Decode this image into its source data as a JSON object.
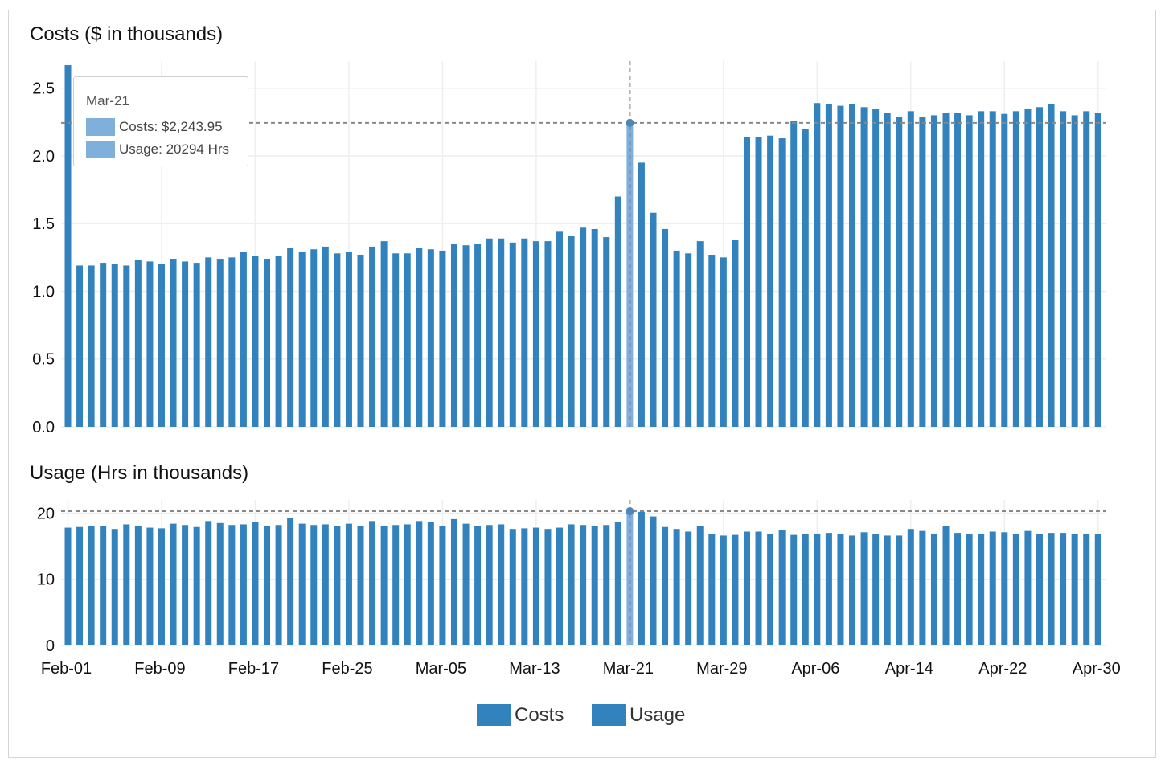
{
  "colors": {
    "bar": "#3182bd",
    "highlight": "#7fb0dc",
    "grid": "#eeeeee",
    "crosshair": "#888888"
  },
  "tooltip": {
    "date": "Mar-21",
    "costs_label": "Costs: $2,243.95",
    "usage_label": "Usage: 20294 Hrs"
  },
  "legend": [
    "Costs",
    "Usage"
  ],
  "chart_data": [
    {
      "type": "bar",
      "title": "Costs ($ in thousands)",
      "series_name": "Costs",
      "ylim": [
        0,
        2.7
      ],
      "yticks": [
        "0.0",
        "0.5",
        "1.0",
        "1.5",
        "2.0",
        "2.5"
      ],
      "ytick_values": [
        0,
        0.5,
        1.0,
        1.5,
        2.0,
        2.5
      ],
      "grid": true,
      "highlight_index": 48,
      "highlight_value": 2.24395,
      "x_ticks": [
        "Feb-01",
        "Feb-09",
        "Feb-17",
        "Feb-25",
        "Mar-05",
        "Mar-13",
        "Mar-21",
        "Mar-29",
        "Apr-06",
        "Apr-14",
        "Apr-22",
        "Apr-30"
      ],
      "x_tick_indices": [
        0,
        8,
        16,
        24,
        32,
        40,
        48,
        56,
        64,
        72,
        80,
        88
      ],
      "values": [
        2.67,
        1.19,
        1.19,
        1.21,
        1.2,
        1.19,
        1.23,
        1.22,
        1.2,
        1.24,
        1.22,
        1.21,
        1.25,
        1.24,
        1.25,
        1.29,
        1.26,
        1.24,
        1.26,
        1.32,
        1.29,
        1.31,
        1.33,
        1.28,
        1.29,
        1.27,
        1.33,
        1.37,
        1.28,
        1.28,
        1.32,
        1.31,
        1.3,
        1.35,
        1.34,
        1.35,
        1.39,
        1.39,
        1.36,
        1.39,
        1.37,
        1.37,
        1.44,
        1.41,
        1.47,
        1.46,
        1.4,
        1.7,
        2.24,
        1.95,
        1.58,
        1.46,
        1.3,
        1.28,
        1.37,
        1.27,
        1.25,
        1.38,
        2.14,
        2.14,
        2.15,
        2.13,
        2.26,
        2.2,
        2.39,
        2.38,
        2.37,
        2.38,
        2.36,
        2.35,
        2.32,
        2.29,
        2.33,
        2.29,
        2.3,
        2.32,
        2.32,
        2.3,
        2.33,
        2.33,
        2.31,
        2.33,
        2.35,
        2.36,
        2.38,
        2.33,
        2.3,
        2.33,
        2.32
      ]
    },
    {
      "type": "bar",
      "title": "Usage (Hrs in thousands)",
      "series_name": "Usage",
      "ylim": [
        0,
        22
      ],
      "yticks": [
        "0",
        "10",
        "20"
      ],
      "ytick_values": [
        0,
        10,
        20
      ],
      "grid": true,
      "highlight_index": 48,
      "highlight_value": 20.294,
      "values": [
        17.8,
        17.9,
        18.0,
        18.0,
        17.6,
        18.3,
        18.0,
        17.8,
        17.7,
        18.4,
        18.2,
        17.9,
        18.8,
        18.5,
        18.2,
        18.3,
        18.7,
        18.1,
        18.2,
        19.3,
        18.4,
        18.2,
        18.3,
        18.1,
        18.4,
        18.0,
        18.8,
        18.1,
        18.2,
        18.3,
        18.8,
        18.6,
        18.1,
        19.1,
        18.4,
        18.1,
        18.2,
        18.3,
        17.6,
        17.7,
        17.8,
        17.6,
        17.8,
        18.3,
        18.2,
        18.1,
        18.2,
        18.7,
        20.3,
        20.2,
        19.5,
        17.9,
        17.6,
        17.2,
        18.0,
        16.8,
        16.6,
        16.7,
        17.2,
        17.2,
        16.9,
        17.5,
        16.7,
        16.8,
        16.9,
        17.0,
        16.8,
        16.6,
        17.1,
        16.8,
        16.6,
        16.6,
        17.6,
        17.3,
        16.9,
        18.1,
        17.0,
        16.8,
        16.9,
        17.2,
        17.1,
        16.9,
        17.3,
        16.8,
        17.0,
        17.0,
        16.8,
        16.9,
        16.8
      ]
    }
  ]
}
